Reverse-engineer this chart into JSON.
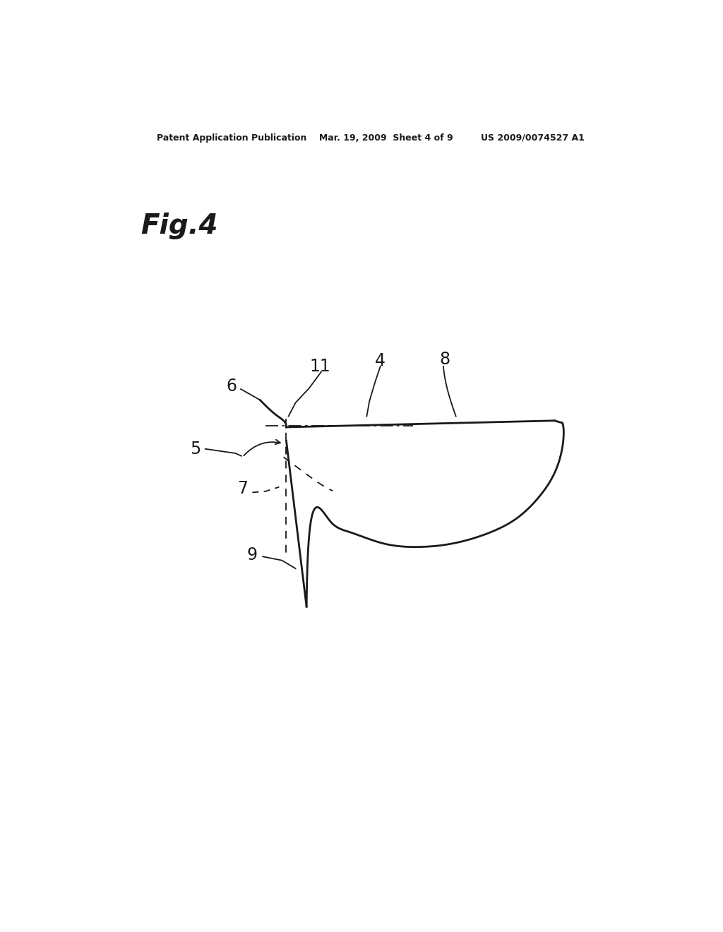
{
  "header": "Patent Application Publication    Mar. 19, 2009  Sheet 4 of 9         US 2009/0074527 A1",
  "fig_label": "Fig.4",
  "bg_color": "#ffffff",
  "line_color": "#1a1a1a",
  "lw_main": 2.0,
  "lw_thin": 1.3,
  "label_fs": 17,
  "fig_label_fs": 28,
  "header_fs": 9
}
